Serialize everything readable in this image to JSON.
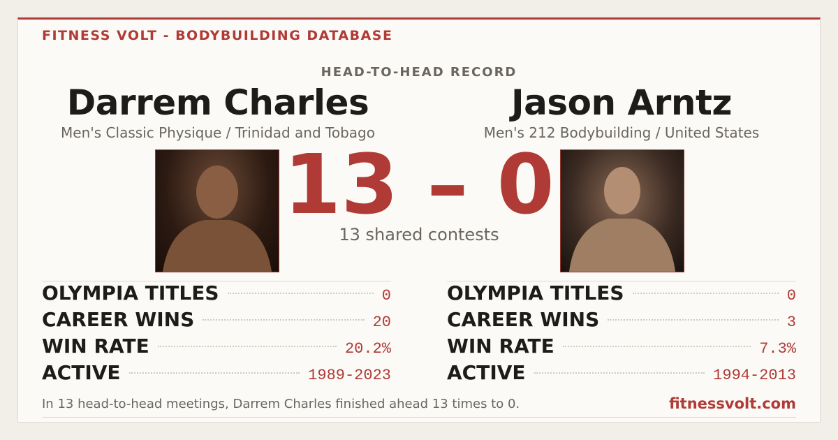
{
  "header": {
    "brand": "FITNESS VOLT - BODYBUILDING DATABASE",
    "section": "HEAD-TO-HEAD RECORD"
  },
  "players": [
    {
      "name": "Darrem Charles",
      "division": "Men's Classic Physique / Trinidad and Tobago",
      "stats": [
        {
          "label": "OLYMPIA TITLES",
          "value": "0"
        },
        {
          "label": "CAREER WINS",
          "value": "20"
        },
        {
          "label": "WIN RATE",
          "value": "20.2%"
        },
        {
          "label": "ACTIVE",
          "value": "1989-2023"
        }
      ]
    },
    {
      "name": "Jason Arntz",
      "division": "Men's 212 Bodybuilding / United States",
      "stats": [
        {
          "label": "OLYMPIA TITLES",
          "value": "0"
        },
        {
          "label": "CAREER WINS",
          "value": "3"
        },
        {
          "label": "WIN RATE",
          "value": "7.3%"
        },
        {
          "label": "ACTIVE",
          "value": "1994-2013"
        }
      ]
    }
  ],
  "score": "13 – 0",
  "shared": "13 shared contests",
  "footer": {
    "summary": "In 13 head-to-head meetings, Darrem Charles finished ahead 13 times to 0.",
    "site": "fitnessvolt.com"
  }
}
